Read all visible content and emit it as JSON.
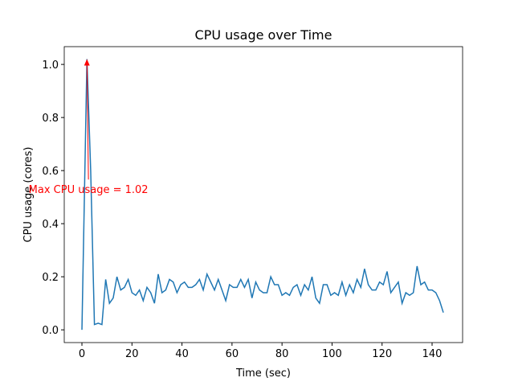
{
  "chart_data": {
    "type": "line",
    "title": "CPU usage over Time",
    "xlabel": "Time (sec)",
    "ylabel": "CPU usage (cores)",
    "x": [
      0,
      2,
      3.5,
      5,
      6.5,
      8,
      9.5,
      11,
      12.5,
      14,
      15.5,
      17,
      18.5,
      20,
      21.5,
      23,
      24.5,
      26,
      27.5,
      29,
      30.5,
      32,
      33.5,
      35,
      36.5,
      38,
      39.5,
      41,
      42.5,
      44,
      45.5,
      47,
      48.5,
      50,
      51.5,
      53,
      54.5,
      56,
      57.5,
      59,
      60.5,
      62,
      63.5,
      65,
      66.5,
      68,
      69.5,
      71,
      72.5,
      74,
      75.5,
      77,
      78.5,
      80,
      81.5,
      83,
      84.5,
      86,
      87.5,
      89,
      90.5,
      92,
      93.5,
      95,
      96.5,
      98,
      99.5,
      101,
      102.5,
      104,
      105.5,
      107,
      108.5,
      110,
      111.5,
      113,
      114.5,
      116,
      117.5,
      119,
      120.5,
      122,
      123.5,
      125,
      126.5,
      128,
      129.5,
      131,
      132.5,
      134,
      135.5,
      137,
      138.5,
      140,
      141.5,
      143,
      144.5
    ],
    "values": [
      0.0,
      1.02,
      0.6,
      0.02,
      0.025,
      0.02,
      0.19,
      0.1,
      0.12,
      0.2,
      0.15,
      0.16,
      0.19,
      0.14,
      0.13,
      0.15,
      0.11,
      0.16,
      0.14,
      0.1,
      0.21,
      0.14,
      0.15,
      0.19,
      0.18,
      0.14,
      0.17,
      0.18,
      0.16,
      0.16,
      0.17,
      0.19,
      0.15,
      0.21,
      0.18,
      0.15,
      0.19,
      0.15,
      0.11,
      0.17,
      0.16,
      0.16,
      0.19,
      0.16,
      0.19,
      0.12,
      0.18,
      0.15,
      0.14,
      0.14,
      0.2,
      0.17,
      0.17,
      0.13,
      0.14,
      0.13,
      0.16,
      0.17,
      0.13,
      0.17,
      0.15,
      0.2,
      0.12,
      0.1,
      0.17,
      0.17,
      0.13,
      0.14,
      0.13,
      0.18,
      0.13,
      0.17,
      0.14,
      0.19,
      0.16,
      0.23,
      0.17,
      0.15,
      0.15,
      0.18,
      0.17,
      0.22,
      0.14,
      0.16,
      0.18,
      0.1,
      0.14,
      0.13,
      0.14,
      0.24,
      0.17,
      0.18,
      0.15,
      0.15,
      0.14,
      0.11,
      0.065
    ],
    "color": "#1f77b4",
    "xlim": [
      -7.07,
      152.2
    ],
    "ylim": [
      -0.048,
      1.067
    ],
    "xticks": [
      0,
      20,
      40,
      60,
      80,
      100,
      120,
      140
    ],
    "yticks": [
      {
        "value": 0,
        "label": "0.0"
      },
      {
        "value": 0.2,
        "label": "0.2"
      },
      {
        "value": 0.4,
        "label": "0.4"
      },
      {
        "value": 0.6,
        "label": "0.6"
      },
      {
        "value": 0.8,
        "label": "0.8"
      },
      {
        "value": 1,
        "label": "1.0"
      }
    ],
    "annotation": {
      "text": "Max CPU usage = 1.02",
      "xy": [
        2,
        1.02
      ],
      "xytext": [
        2.6,
        0.53
      ],
      "color": "red"
    }
  }
}
